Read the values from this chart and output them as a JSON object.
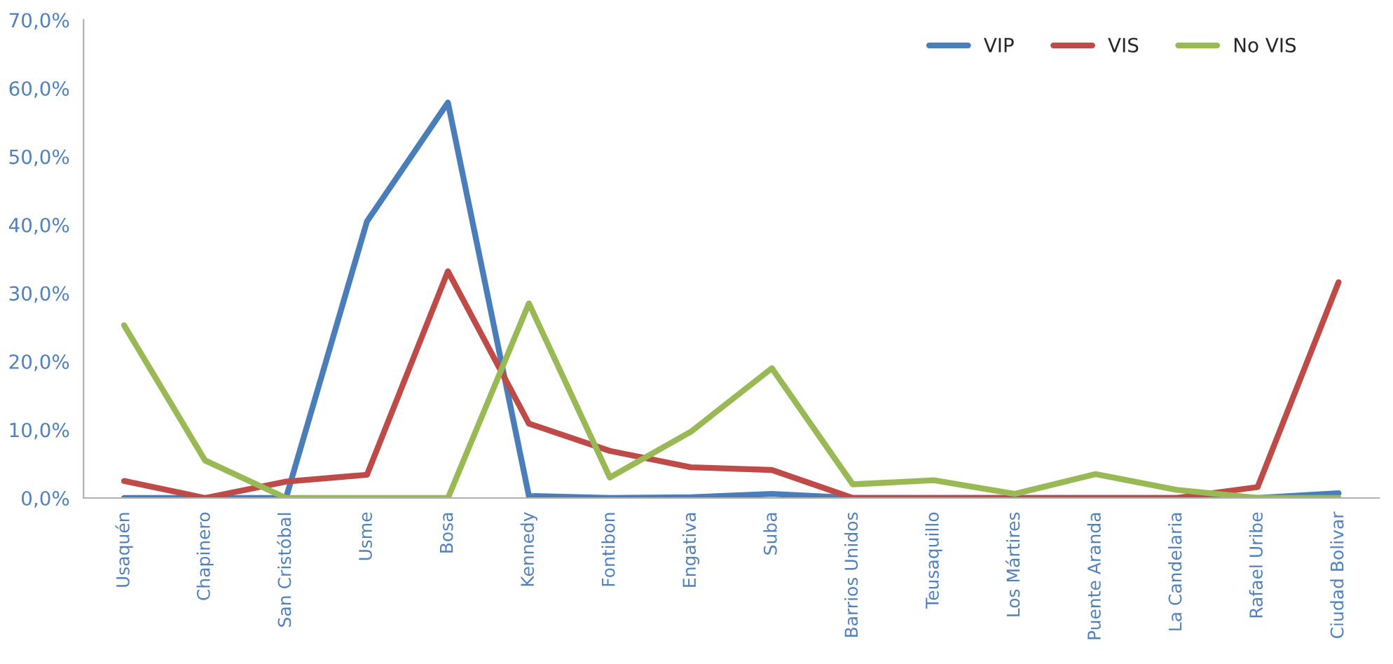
{
  "chart_data": {
    "type": "line",
    "categories": [
      "Usaquén",
      "Chapinero",
      "San Cristóbal",
      "Usme",
      "Bosa",
      "Kennedy",
      "Fontibon",
      "Engativa",
      "Suba",
      "Barrios Unidos",
      "Teusaquillo",
      "Los Mártires",
      "Puente Aranda",
      "La Candelaria",
      "Rafael Uribe",
      "Ciudad Bolivar"
    ],
    "series": [
      {
        "name": "VIP",
        "color": "#4a7ebb",
        "values": [
          0,
          0,
          0,
          40.5,
          57.9,
          0.3,
          0,
          0.1,
          0.6,
          0,
          0,
          0,
          0,
          0,
          0,
          0.7
        ]
      },
      {
        "name": "VIS",
        "color": "#be4b48",
        "values": [
          2.5,
          0,
          2.4,
          3.4,
          33.2,
          10.9,
          6.9,
          4.5,
          4.1,
          0,
          0,
          0,
          0,
          0,
          1.6,
          31.6
        ]
      },
      {
        "name": "No VIS",
        "color": "#98b954",
        "values": [
          25.3,
          5.5,
          0,
          0,
          0,
          28.5,
          3.0,
          9.7,
          19.0,
          2.0,
          2.6,
          0.6,
          3.5,
          1.2,
          0,
          0
        ]
      }
    ],
    "ylim": [
      0,
      70
    ],
    "yticks": [
      {
        "value": 0,
        "label": "0,0%"
      },
      {
        "value": 10,
        "label": "10,0%"
      },
      {
        "value": 20,
        "label": "20,0%"
      },
      {
        "value": 30,
        "label": "30,0%"
      },
      {
        "value": 40,
        "label": "40,0%"
      },
      {
        "value": 50,
        "label": "50,0%"
      },
      {
        "value": 60,
        "label": "60,0%"
      },
      {
        "value": 70,
        "label": "70,0%"
      }
    ],
    "grid": false,
    "legend": "top right",
    "marker": "none",
    "line_style": "solid"
  }
}
